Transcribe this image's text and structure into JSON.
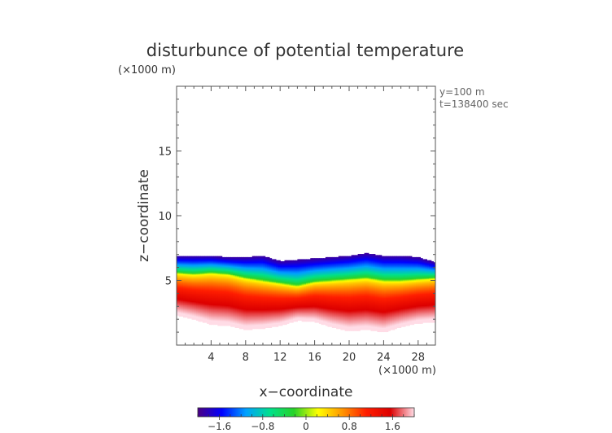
{
  "chart_data": {
    "type": "heatmap",
    "title": "disturbunce of potential temperature",
    "xlabel": "x−coordinate",
    "ylabel": "z−coordinate",
    "x_unit_label": "(×1000 m)",
    "y_unit_label": "(×1000 m)",
    "annotations": [
      "y=100 m",
      "t=138400 sec"
    ],
    "xlim": [
      0,
      30
    ],
    "ylim": [
      0,
      20
    ],
    "x_ticks": [
      4,
      8,
      12,
      16,
      20,
      24,
      28
    ],
    "y_ticks": [
      5,
      10,
      15
    ],
    "colorbar": {
      "min": -2.0,
      "max": 2.0,
      "ticks": [
        -1.6,
        -0.8,
        0,
        0.8,
        1.6
      ],
      "tick_labels": [
        "−1.6",
        "−0.8",
        "0",
        "0.8",
        "1.6"
      ],
      "colors": [
        "#4b0082",
        "#0000ff",
        "#00a0ff",
        "#00e08c",
        "#28d228",
        "#ffff00",
        "#ff9600",
        "#ff1e00",
        "#dc0000",
        "#ffdce6"
      ]
    },
    "layer": {
      "x": [
        0,
        2,
        4,
        6,
        8,
        10,
        12,
        14,
        16,
        18,
        20,
        22,
        24,
        26,
        28,
        30
      ],
      "top_z": [
        6.9,
        6.9,
        6.9,
        6.8,
        6.8,
        6.9,
        6.5,
        6.6,
        6.7,
        6.8,
        6.9,
        7.1,
        6.9,
        6.9,
        6.8,
        6.4
      ],
      "bottom_z": [
        2.3,
        2.0,
        1.6,
        1.5,
        1.2,
        1.3,
        1.5,
        1.9,
        1.8,
        1.4,
        1.1,
        1.2,
        1.0,
        1.4,
        1.7,
        1.8
      ],
      "zero_line_z": [
        5.6,
        5.5,
        5.6,
        5.5,
        5.2,
        5.0,
        4.8,
        4.6,
        4.9,
        5.0,
        5.1,
        5.2,
        5.0,
        5.0,
        5.1,
        5.2
      ],
      "max_dT": 2.0,
      "min_dT": -1.9
    }
  }
}
